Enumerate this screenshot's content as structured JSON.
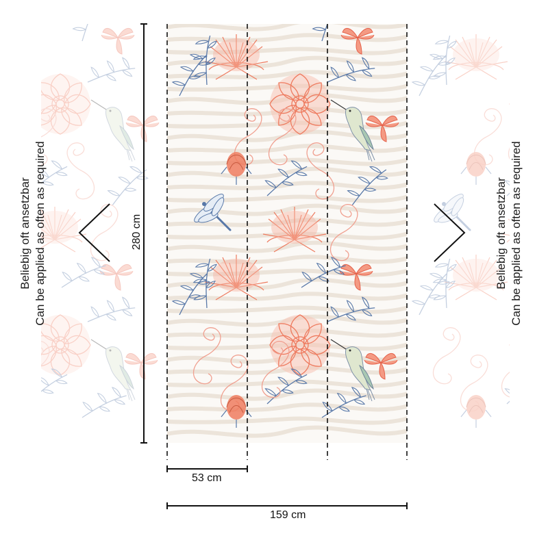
{
  "height_label": "280 cm",
  "panel_width_label": "53 cm",
  "total_width_label": "159 cm",
  "repeat_text_de": "Beliebig oft ansetzbar",
  "repeat_text_en": "Can be applied as often as required",
  "colors": {
    "coral": "#ee7a5e",
    "coral_light": "#f5b3a3",
    "blue": "#5878a8",
    "orange": "#f3a858",
    "bird_green": "#c9d6b8",
    "zebra": "#e9e1d8",
    "line": "#111111"
  }
}
